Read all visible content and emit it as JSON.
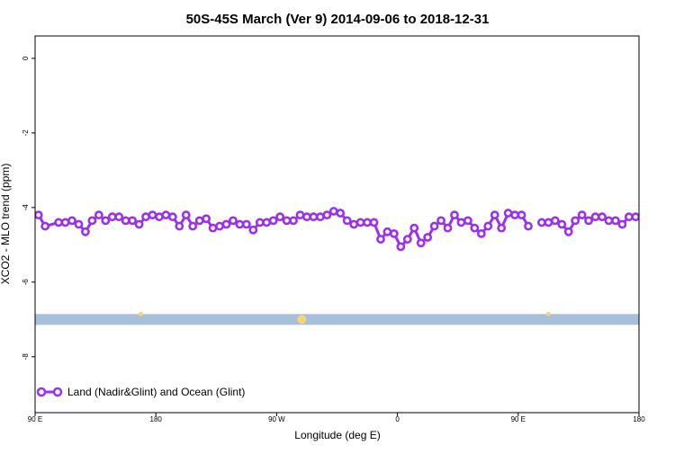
{
  "chart_data": {
    "type": "line",
    "title": "50S-45S March (Ver 9)   2014-09-06 to 2018-12-31",
    "xlabel": "Longitude (deg E)",
    "ylabel": "XCO2 - MLO trend (ppm)",
    "xlim": [
      90,
      450
    ],
    "ylim": [
      -9.5,
      0.6
    ],
    "x_ticks": [
      {
        "value": 90,
        "label": "90 E"
      },
      {
        "value": 162,
        "label": "180"
      },
      {
        "value": 234,
        "label": "90 W"
      },
      {
        "value": 306,
        "label": "0"
      },
      {
        "value": 378,
        "label": "90 E"
      },
      {
        "value": 450,
        "label": "180"
      }
    ],
    "y_ticks": [
      {
        "value": 0,
        "label": "0"
      },
      {
        "value": -2,
        "label": "-2"
      },
      {
        "value": -4,
        "label": "-4"
      },
      {
        "value": -6,
        "label": "-6"
      },
      {
        "value": -8,
        "label": "-8"
      }
    ],
    "legend": {
      "position": "bottom-left",
      "label": "Land (Nadir&Glint) and Ocean (Glint)"
    },
    "colors": {
      "series": "#9b30f2",
      "band": "#a8bfdc",
      "land_marker": "#f5d76e"
    },
    "series": [
      {
        "name": "Land (Nadir&Glint) and Ocean (Glint)",
        "segments": [
          {
            "x": [
              92,
              96,
              104,
              108,
              112,
              116,
              120,
              124,
              128,
              132,
              136,
              140,
              144,
              148,
              152,
              156,
              160,
              164,
              168,
              172,
              176,
              180,
              184,
              188,
              192,
              196,
              200,
              204,
              208,
              212,
              216,
              220,
              224,
              228,
              232,
              236,
              240,
              244,
              248,
              252,
              256,
              260,
              264,
              268,
              272,
              276,
              280,
              284,
              288,
              292,
              296,
              300,
              304,
              308,
              312,
              316,
              320,
              324,
              328,
              332,
              336,
              340,
              344,
              348,
              352,
              356,
              360,
              364,
              368,
              372,
              376,
              380,
              384
            ],
            "y": [
              -4.2,
              -4.5,
              -4.4,
              -4.4,
              -4.35,
              -4.45,
              -4.65,
              -4.35,
              -4.2,
              -4.35,
              -4.25,
              -4.25,
              -4.35,
              -4.35,
              -4.45,
              -4.25,
              -4.2,
              -4.25,
              -4.2,
              -4.25,
              -4.5,
              -4.2,
              -4.5,
              -4.35,
              -4.3,
              -4.55,
              -4.5,
              -4.45,
              -4.35,
              -4.45,
              -4.45,
              -4.6,
              -4.4,
              -4.4,
              -4.35,
              -4.25,
              -4.35,
              -4.35,
              -4.2,
              -4.25,
              -4.25,
              -4.25,
              -4.2,
              -4.1,
              -4.15,
              -4.35,
              -4.45,
              -4.4,
              -4.4,
              -4.4,
              -4.85,
              -4.65,
              -4.7,
              -5.05,
              -4.85,
              -4.55,
              -4.95,
              -4.8,
              -4.5,
              -4.35,
              -4.55,
              -4.2,
              -4.4,
              -4.35,
              -4.55,
              -4.7,
              -4.5,
              -4.2,
              -4.55,
              -4.15,
              -4.2,
              -4.2,
              -4.5
            ]
          },
          {
            "x": [
              392,
              396,
              400,
              404,
              408,
              412,
              416,
              420,
              424,
              428,
              432,
              436,
              440,
              444,
              448,
              452
            ],
            "y": [
              -4.4,
              -4.4,
              -4.35,
              -4.45,
              -4.65,
              -4.35,
              -4.2,
              -4.35,
              -4.25,
              -4.25,
              -4.35,
              -4.35,
              -4.45,
              -4.25,
              -4.25,
              -4.25
            ]
          }
        ]
      }
    ],
    "reference_band": {
      "y": -7.0
    },
    "land_markers": [
      {
        "x": 153,
        "size": "small"
      },
      {
        "x": 249,
        "size": "large"
      },
      {
        "x": 396,
        "size": "small"
      }
    ]
  }
}
